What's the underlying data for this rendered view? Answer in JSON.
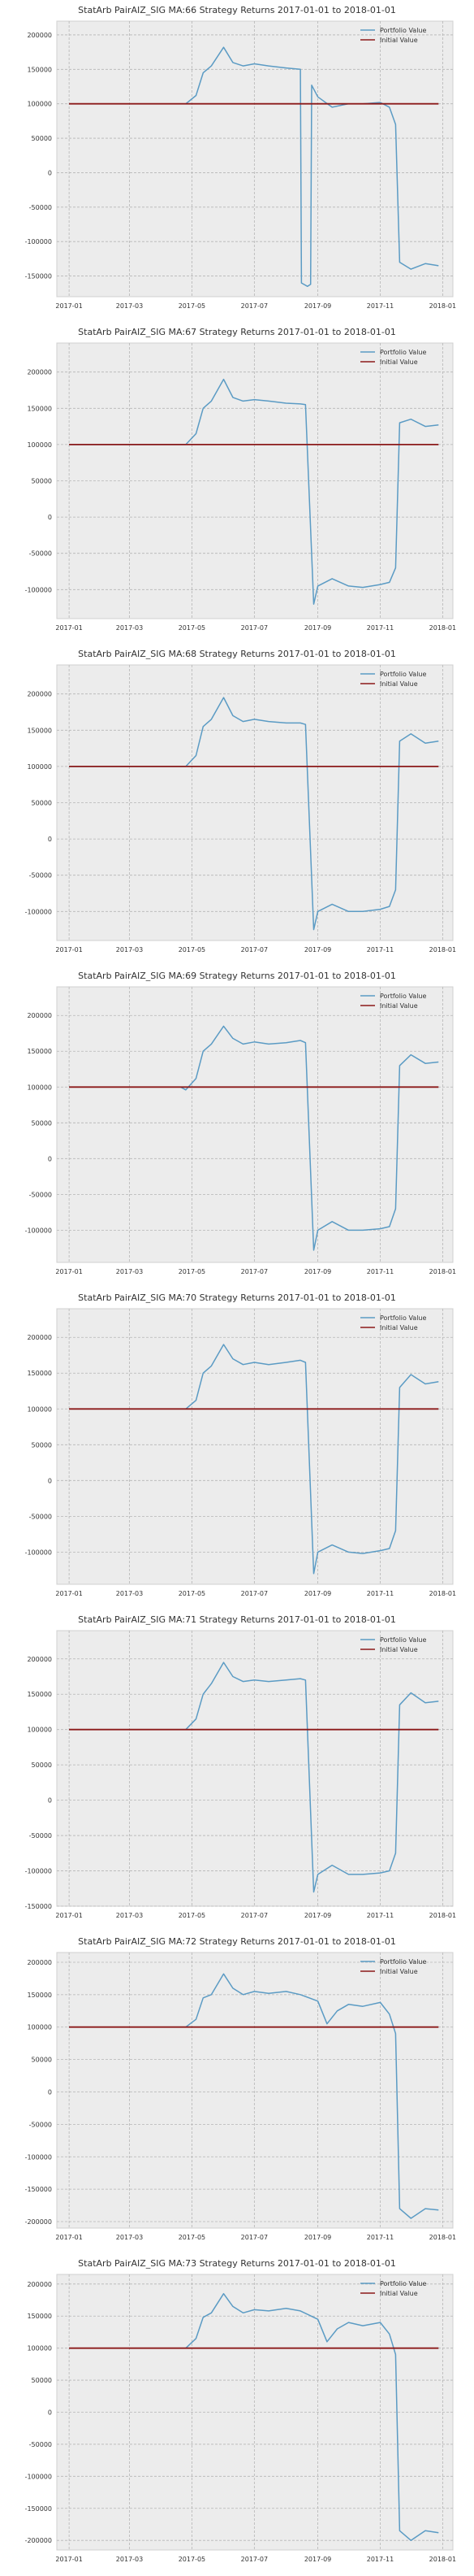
{
  "colors": {
    "portfolio": "#5b9bc4",
    "initial": "#8b1a1a",
    "panel_bg": "#ececec",
    "grid": "#b5b5b5",
    "text": "#333333"
  },
  "x_ticks": [
    "2017-01",
    "2017-03",
    "2017-05",
    "2017-07",
    "2017-09",
    "2017-11",
    "2018-01"
  ],
  "chart_data": [
    {
      "type": "line",
      "title": "StatArb PairAIZ_SIG MA:66 Strategy Returns 2017-01-01 to 2018-01-01",
      "xlabel": "",
      "ylabel": "",
      "xlim": [
        "2016-12-20",
        "2018-01-11"
      ],
      "ylim": [
        -180000,
        220000
      ],
      "y_ticks": [
        -150000,
        -100000,
        -50000,
        0,
        50000,
        100000,
        150000,
        200000
      ],
      "legend": {
        "position": "top-right",
        "entries": [
          "Portfolio Value",
          "Initial Value"
        ]
      },
      "grid": true,
      "series": [
        {
          "name": "Portfolio Value",
          "x": [
            "2017-01-01",
            "2017-04-25",
            "2017-05-05",
            "2017-05-12",
            "2017-05-20",
            "2017-06-01",
            "2017-06-10",
            "2017-06-20",
            "2017-07-01",
            "2017-07-15",
            "2017-08-01",
            "2017-08-15",
            "2017-08-16",
            "2017-08-22",
            "2017-08-25",
            "2017-08-26",
            "2017-09-01",
            "2017-09-15",
            "2017-10-01",
            "2017-10-15",
            "2017-11-01",
            "2017-11-10",
            "2017-11-16",
            "2017-11-20",
            "2017-12-01",
            "2017-12-15",
            "2017-12-28"
          ],
          "values": [
            100000,
            100000,
            112000,
            145000,
            155000,
            182000,
            160000,
            155000,
            158000,
            155000,
            152000,
            150000,
            -160000,
            -165000,
            -162000,
            127000,
            110000,
            95000,
            100000,
            100000,
            102000,
            95000,
            70000,
            -130000,
            -140000,
            -132000,
            -135000
          ]
        },
        {
          "name": "Initial Value",
          "x": [
            "2017-01-01",
            "2017-12-28"
          ],
          "values": [
            100000,
            100000
          ]
        }
      ]
    },
    {
      "type": "line",
      "title": "StatArb PairAIZ_SIG MA:67 Strategy Returns 2017-01-01 to 2018-01-01",
      "xlabel": "",
      "ylabel": "",
      "xlim": [
        "2016-12-20",
        "2018-01-11"
      ],
      "ylim": [
        -140000,
        240000
      ],
      "y_ticks": [
        -100000,
        -50000,
        0,
        50000,
        100000,
        150000,
        200000
      ],
      "legend": {
        "position": "top-right",
        "entries": [
          "Portfolio Value",
          "Initial Value"
        ]
      },
      "grid": true,
      "series": [
        {
          "name": "Portfolio Value",
          "x": [
            "2017-01-01",
            "2017-04-25",
            "2017-05-05",
            "2017-05-12",
            "2017-05-20",
            "2017-06-01",
            "2017-06-10",
            "2017-06-20",
            "2017-07-01",
            "2017-07-15",
            "2017-08-01",
            "2017-08-15",
            "2017-08-20",
            "2017-08-28",
            "2017-09-01",
            "2017-09-15",
            "2017-10-01",
            "2017-10-15",
            "2017-11-01",
            "2017-11-10",
            "2017-11-16",
            "2017-11-20",
            "2017-12-01",
            "2017-12-15",
            "2017-12-28"
          ],
          "values": [
            100000,
            100000,
            115000,
            150000,
            160000,
            190000,
            165000,
            160000,
            162000,
            160000,
            157000,
            156000,
            155000,
            -120000,
            -95000,
            -85000,
            -95000,
            -97000,
            -93000,
            -90000,
            -70000,
            130000,
            135000,
            125000,
            127000
          ]
        },
        {
          "name": "Initial Value",
          "x": [
            "2017-01-01",
            "2017-12-28"
          ],
          "values": [
            100000,
            100000
          ]
        }
      ]
    },
    {
      "type": "line",
      "title": "StatArb PairAIZ_SIG MA:68 Strategy Returns 2017-01-01 to 2018-01-01",
      "xlabel": "",
      "ylabel": "",
      "xlim": [
        "2016-12-20",
        "2018-01-11"
      ],
      "ylim": [
        -140000,
        240000
      ],
      "y_ticks": [
        -100000,
        -50000,
        0,
        50000,
        100000,
        150000,
        200000
      ],
      "legend": {
        "position": "top-right",
        "entries": [
          "Portfolio Value",
          "Initial Value"
        ]
      },
      "grid": true,
      "series": [
        {
          "name": "Portfolio Value",
          "x": [
            "2017-01-01",
            "2017-04-25",
            "2017-05-05",
            "2017-05-12",
            "2017-05-20",
            "2017-06-01",
            "2017-06-10",
            "2017-06-20",
            "2017-07-01",
            "2017-07-15",
            "2017-08-01",
            "2017-08-15",
            "2017-08-20",
            "2017-08-28",
            "2017-09-01",
            "2017-09-15",
            "2017-10-01",
            "2017-10-15",
            "2017-11-01",
            "2017-11-10",
            "2017-11-16",
            "2017-11-20",
            "2017-12-01",
            "2017-12-15",
            "2017-12-28"
          ],
          "values": [
            100000,
            100000,
            115000,
            155000,
            165000,
            195000,
            170000,
            162000,
            165000,
            162000,
            160000,
            160000,
            158000,
            -125000,
            -100000,
            -90000,
            -100000,
            -100000,
            -97000,
            -93000,
            -70000,
            135000,
            145000,
            132000,
            135000
          ]
        },
        {
          "name": "Initial Value",
          "x": [
            "2017-01-01",
            "2017-12-28"
          ],
          "values": [
            100000,
            100000
          ]
        }
      ]
    },
    {
      "type": "line",
      "title": "StatArb PairAIZ_SIG MA:69 Strategy Returns 2017-01-01 to 2018-01-01",
      "xlabel": "",
      "ylabel": "",
      "xlim": [
        "2016-12-20",
        "2018-01-11"
      ],
      "ylim": [
        -145000,
        240000
      ],
      "y_ticks": [
        -100000,
        -50000,
        0,
        50000,
        100000,
        150000,
        200000
      ],
      "legend": {
        "position": "top-right",
        "entries": [
          "Portfolio Value",
          "Initial Value"
        ]
      },
      "grid": true,
      "series": [
        {
          "name": "Portfolio Value",
          "x": [
            "2017-01-01",
            "2017-04-20",
            "2017-04-25",
            "2017-05-05",
            "2017-05-12",
            "2017-05-20",
            "2017-06-01",
            "2017-06-10",
            "2017-06-20",
            "2017-07-01",
            "2017-07-15",
            "2017-08-01",
            "2017-08-15",
            "2017-08-20",
            "2017-08-28",
            "2017-09-01",
            "2017-09-15",
            "2017-10-01",
            "2017-10-15",
            "2017-11-01",
            "2017-11-10",
            "2017-11-16",
            "2017-11-20",
            "2017-12-01",
            "2017-12-15",
            "2017-12-28"
          ],
          "values": [
            100000,
            100000,
            96000,
            112000,
            150000,
            160000,
            185000,
            168000,
            160000,
            163000,
            160000,
            162000,
            165000,
            162000,
            -128000,
            -100000,
            -88000,
            -100000,
            -100000,
            -98000,
            -95000,
            -70000,
            130000,
            145000,
            133000,
            135000
          ]
        },
        {
          "name": "Initial Value",
          "x": [
            "2017-01-01",
            "2017-12-28"
          ],
          "values": [
            100000,
            100000
          ]
        }
      ]
    },
    {
      "type": "line",
      "title": "StatArb PairAIZ_SIG MA:70 Strategy Returns 2017-01-01 to 2018-01-01",
      "xlabel": "",
      "ylabel": "",
      "xlim": [
        "2016-12-20",
        "2018-01-11"
      ],
      "ylim": [
        -145000,
        240000
      ],
      "y_ticks": [
        -100000,
        -50000,
        0,
        50000,
        100000,
        150000,
        200000
      ],
      "legend": {
        "position": "top-right",
        "entries": [
          "Portfolio Value",
          "Initial Value"
        ]
      },
      "grid": true,
      "series": [
        {
          "name": "Portfolio Value",
          "x": [
            "2017-01-01",
            "2017-04-25",
            "2017-05-05",
            "2017-05-12",
            "2017-05-20",
            "2017-06-01",
            "2017-06-10",
            "2017-06-20",
            "2017-07-01",
            "2017-07-15",
            "2017-08-01",
            "2017-08-15",
            "2017-08-20",
            "2017-08-28",
            "2017-09-01",
            "2017-09-15",
            "2017-10-01",
            "2017-10-15",
            "2017-11-01",
            "2017-11-10",
            "2017-11-16",
            "2017-11-20",
            "2017-12-01",
            "2017-12-15",
            "2017-12-28"
          ],
          "values": [
            100000,
            100000,
            112000,
            150000,
            160000,
            190000,
            170000,
            162000,
            165000,
            162000,
            165000,
            168000,
            165000,
            -130000,
            -100000,
            -90000,
            -100000,
            -102000,
            -98000,
            -95000,
            -70000,
            130000,
            148000,
            135000,
            138000
          ]
        },
        {
          "name": "Initial Value",
          "x": [
            "2017-01-01",
            "2017-12-28"
          ],
          "values": [
            100000,
            100000
          ]
        }
      ]
    },
    {
      "type": "line",
      "title": "StatArb PairAIZ_SIG MA:71 Strategy Returns 2017-01-01 to 2018-01-01",
      "xlabel": "",
      "ylabel": "",
      "xlim": [
        "2016-12-20",
        "2018-01-11"
      ],
      "ylim": [
        -150000,
        240000
      ],
      "y_ticks": [
        -150000,
        -100000,
        -50000,
        0,
        50000,
        100000,
        150000,
        200000
      ],
      "legend": {
        "position": "top-right",
        "entries": [
          "Portfolio Value",
          "Initial Value"
        ]
      },
      "grid": true,
      "series": [
        {
          "name": "Portfolio Value",
          "x": [
            "2017-01-01",
            "2017-04-25",
            "2017-05-05",
            "2017-05-12",
            "2017-05-20",
            "2017-06-01",
            "2017-06-10",
            "2017-06-20",
            "2017-07-01",
            "2017-07-15",
            "2017-08-01",
            "2017-08-15",
            "2017-08-20",
            "2017-08-28",
            "2017-09-01",
            "2017-09-15",
            "2017-10-01",
            "2017-10-15",
            "2017-11-01",
            "2017-11-10",
            "2017-11-16",
            "2017-11-20",
            "2017-12-01",
            "2017-12-15",
            "2017-12-28"
          ],
          "values": [
            100000,
            100000,
            115000,
            150000,
            165000,
            195000,
            175000,
            168000,
            170000,
            168000,
            170000,
            172000,
            170000,
            -130000,
            -105000,
            -92000,
            -105000,
            -105000,
            -103000,
            -100000,
            -75000,
            135000,
            152000,
            138000,
            140000
          ]
        },
        {
          "name": "Initial Value",
          "x": [
            "2017-01-01",
            "2017-12-28"
          ],
          "values": [
            100000,
            100000
          ]
        }
      ]
    },
    {
      "type": "line",
      "title": "StatArb PairAIZ_SIG MA:72 Strategy Returns 2017-01-01 to 2018-01-01",
      "xlabel": "",
      "ylabel": "",
      "xlim": [
        "2016-12-20",
        "2018-01-11"
      ],
      "ylim": [
        -210000,
        215000
      ],
      "y_ticks": [
        -200000,
        -150000,
        -100000,
        -50000,
        0,
        50000,
        100000,
        150000,
        200000
      ],
      "legend": {
        "position": "top-right",
        "entries": [
          "Portfolio Value",
          "Initial Value"
        ]
      },
      "grid": true,
      "series": [
        {
          "name": "Portfolio Value",
          "x": [
            "2017-01-01",
            "2017-04-25",
            "2017-05-05",
            "2017-05-12",
            "2017-05-20",
            "2017-06-01",
            "2017-06-10",
            "2017-06-20",
            "2017-07-01",
            "2017-07-15",
            "2017-08-01",
            "2017-08-15",
            "2017-09-01",
            "2017-09-10",
            "2017-09-20",
            "2017-10-01",
            "2017-10-15",
            "2017-11-01",
            "2017-11-10",
            "2017-11-16",
            "2017-11-20",
            "2017-12-01",
            "2017-12-15",
            "2017-12-28"
          ],
          "values": [
            100000,
            100000,
            112000,
            145000,
            150000,
            182000,
            160000,
            150000,
            155000,
            152000,
            155000,
            150000,
            140000,
            105000,
            125000,
            135000,
            132000,
            138000,
            120000,
            90000,
            -180000,
            -195000,
            -180000,
            -182000
          ]
        },
        {
          "name": "Initial Value",
          "x": [
            "2017-01-01",
            "2017-12-28"
          ],
          "values": [
            100000,
            100000
          ]
        }
      ]
    },
    {
      "type": "line",
      "title": "StatArb PairAIZ_SIG MA:73 Strategy Returns 2017-01-01 to 2018-01-01",
      "xlabel": "",
      "ylabel": "",
      "xlim": [
        "2016-12-20",
        "2018-01-11"
      ],
      "ylim": [
        -215000,
        215000
      ],
      "y_ticks": [
        -200000,
        -150000,
        -100000,
        -50000,
        0,
        50000,
        100000,
        150000,
        200000
      ],
      "legend": {
        "position": "top-right",
        "entries": [
          "Portfolio Value",
          "Initial Value"
        ]
      },
      "grid": true,
      "series": [
        {
          "name": "Portfolio Value",
          "x": [
            "2017-01-01",
            "2017-04-25",
            "2017-05-05",
            "2017-05-12",
            "2017-05-20",
            "2017-06-01",
            "2017-06-10",
            "2017-06-20",
            "2017-07-01",
            "2017-07-15",
            "2017-08-01",
            "2017-08-15",
            "2017-09-01",
            "2017-09-10",
            "2017-09-20",
            "2017-10-01",
            "2017-10-15",
            "2017-11-01",
            "2017-11-10",
            "2017-11-16",
            "2017-11-20",
            "2017-12-01",
            "2017-12-15",
            "2017-12-28"
          ],
          "values": [
            100000,
            100000,
            115000,
            148000,
            155000,
            185000,
            165000,
            155000,
            160000,
            158000,
            162000,
            158000,
            145000,
            110000,
            130000,
            140000,
            135000,
            140000,
            122000,
            90000,
            -185000,
            -200000,
            -185000,
            -188000
          ]
        },
        {
          "name": "Initial Value",
          "x": [
            "2017-01-01",
            "2017-12-28"
          ],
          "values": [
            100000,
            100000
          ]
        }
      ]
    }
  ]
}
